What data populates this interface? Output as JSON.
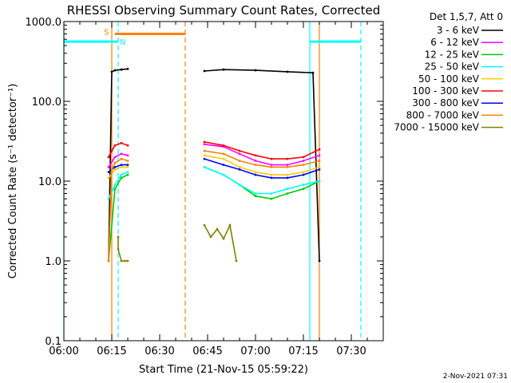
{
  "chart_data": {
    "type": "line",
    "title": "RHESSI Observing Summary Count Rates, Corrected",
    "xlabel": "Start Time (21-Nov-15 05:59:22)",
    "ylabel": "Corrected Count Rate (s⁻¹ detector⁻¹)",
    "y_scale": "log",
    "ylim": [
      0.1,
      1000
    ],
    "xlim": [
      "06:00",
      "07:40"
    ],
    "x_ticks": [
      "06:00",
      "06:15",
      "06:30",
      "06:45",
      "07:00",
      "07:15",
      "07:30"
    ],
    "y_ticks": [
      "0.1",
      "1.0",
      "10.0",
      "100.0",
      "1000.0"
    ],
    "legend_title": "Det 1,5,7, Att 0",
    "legend_position": "right",
    "footer": "2-Nov-2021 07:31",
    "series": [
      {
        "name": "3 - 6 keV",
        "color": "#000000",
        "segments": [
          {
            "x": [
              "06:14",
              "06:15",
              "06:16",
              "06:18",
              "06:20"
            ],
            "y": [
              1.0,
              235,
              245,
              250,
              255
            ]
          },
          {
            "x": [
              "06:44",
              "06:50",
              "07:00",
              "07:10",
              "07:18",
              "07:20"
            ],
            "y": [
              240,
              250,
              245,
              235,
              228,
              1.0
            ]
          }
        ]
      },
      {
        "name": "6 - 12 keV",
        "color": "#ff00ff",
        "segments": [
          {
            "x": [
              "06:14",
              "06:16",
              "06:18",
              "06:20"
            ],
            "y": [
              15,
              20,
              22,
              21
            ]
          },
          {
            "x": [
              "06:44",
              "06:50",
              "06:55",
              "07:00",
              "07:05",
              "07:10",
              "07:15",
              "07:20"
            ],
            "y": [
              29,
              27,
              22,
              18,
              16,
              16,
              18,
              21
            ]
          }
        ]
      },
      {
        "name": "12 - 25 keV",
        "color": "#00cc00",
        "segments": [
          {
            "x": [
              "06:14",
              "06:16",
              "06:18",
              "06:20"
            ],
            "y": [
              1.0,
              8,
              11,
              12
            ]
          },
          {
            "x": [
              "06:44",
              "06:50",
              "06:55",
              "07:00",
              "07:05",
              "07:10",
              "07:15",
              "07:20"
            ],
            "y": [
              15,
              12,
              9,
              6.5,
              6,
              7,
              8,
              10
            ]
          }
        ]
      },
      {
        "name": "25 - 50 keV",
        "color": "#00ffff",
        "segments": [
          {
            "x": [
              "06:14",
              "06:16",
              "06:18",
              "06:20"
            ],
            "y": [
              6,
              9,
              12,
              13
            ]
          },
          {
            "x": [
              "06:44",
              "06:50",
              "06:55",
              "07:00",
              "07:05",
              "07:10",
              "07:15",
              "07:20"
            ],
            "y": [
              15,
              12,
              9,
              7,
              7,
              8,
              9,
              10
            ]
          }
        ]
      },
      {
        "name": "50 - 100 keV",
        "color": "#ffcc00",
        "segments": [
          {
            "x": [
              "06:14",
              "06:16",
              "06:18",
              "06:20"
            ],
            "y": [
              11,
              14,
              15,
              15
            ]
          },
          {
            "x": [
              "06:44",
              "06:50",
              "06:55",
              "07:00",
              "07:05",
              "07:10",
              "07:15",
              "07:20"
            ],
            "y": [
              21,
              19,
              15,
              13,
              12,
              12,
              13,
              15
            ]
          }
        ]
      },
      {
        "name": "100 - 300 keV",
        "color": "#ff0000",
        "segments": [
          {
            "x": [
              "06:14",
              "06:15",
              "06:16",
              "06:18",
              "06:20"
            ],
            "y": [
              20,
              24,
              28,
              30,
              28
            ]
          },
          {
            "x": [
              "06:44",
              "06:50",
              "06:55",
              "07:00",
              "07:05",
              "07:10",
              "07:15",
              "07:20"
            ],
            "y": [
              31,
              28,
              24,
              21,
              19,
              19,
              20,
              25
            ]
          }
        ]
      },
      {
        "name": "300 - 800 keV",
        "color": "#0000ff",
        "segments": [
          {
            "x": [
              "06:14",
              "06:16",
              "06:18",
              "06:20"
            ],
            "y": [
              13,
              15,
              16,
              16
            ]
          },
          {
            "x": [
              "06:44",
              "06:50",
              "06:55",
              "07:00",
              "07:05",
              "07:10",
              "07:15",
              "07:20"
            ],
            "y": [
              19,
              16,
              14,
              12,
              11,
              11,
              12,
              14
            ]
          }
        ]
      },
      {
        "name": "800 - 7000 keV",
        "color": "#ff8000",
        "segments": [
          {
            "x": [
              "06:14",
              "06:15",
              "06:16",
              "06:18",
              "06:20"
            ],
            "y": [
              1.0,
              14,
              17,
              19,
              18
            ]
          },
          {
            "x": [
              "06:44",
              "06:50",
              "06:55",
              "07:00",
              "07:05",
              "07:10",
              "07:15",
              "07:20"
            ],
            "y": [
              24,
              22,
              18,
              16,
              15,
              15,
              16,
              18
            ]
          }
        ]
      },
      {
        "name": "7000 - 15000 keV",
        "color": "#808000",
        "segments": [
          {
            "x": [
              "06:17",
              "06:17",
              "06:18",
              "06:19",
              "06:20"
            ],
            "y": [
              2.0,
              1.4,
              1.0,
              1.0,
              1.0
            ]
          },
          {
            "x": [
              "06:44",
              "06:46",
              "06:48",
              "06:50",
              "06:52",
              "06:54"
            ],
            "y": [
              2.8,
              2.0,
              2.5,
              1.9,
              2.8,
              1.0
            ]
          }
        ]
      }
    ],
    "annotations": {
      "S": {
        "label": "S",
        "color": "#ff8000",
        "bar_x": [
          "06:16",
          "06:38"
        ],
        "bar_y": 700
      },
      "N": {
        "label": "N",
        "color": "#00ffff",
        "bar_x": [
          "06:00",
          "06:17"
        ],
        "bar_y": 560
      },
      "N_right_bar_x": [
        "07:17",
        "07:33"
      ],
      "cyan_lines": [
        {
          "x": "06:00",
          "style": "solid"
        },
        {
          "x": "06:17",
          "style": "dashed"
        },
        {
          "x": "07:17",
          "style": "solid"
        },
        {
          "x": "07:33",
          "style": "dashed"
        }
      ],
      "orange_lines": [
        {
          "x": "06:15",
          "style": "solid"
        },
        {
          "x": "06:38",
          "style": "dashed"
        },
        {
          "x": "07:20",
          "style": "solid"
        }
      ]
    }
  }
}
